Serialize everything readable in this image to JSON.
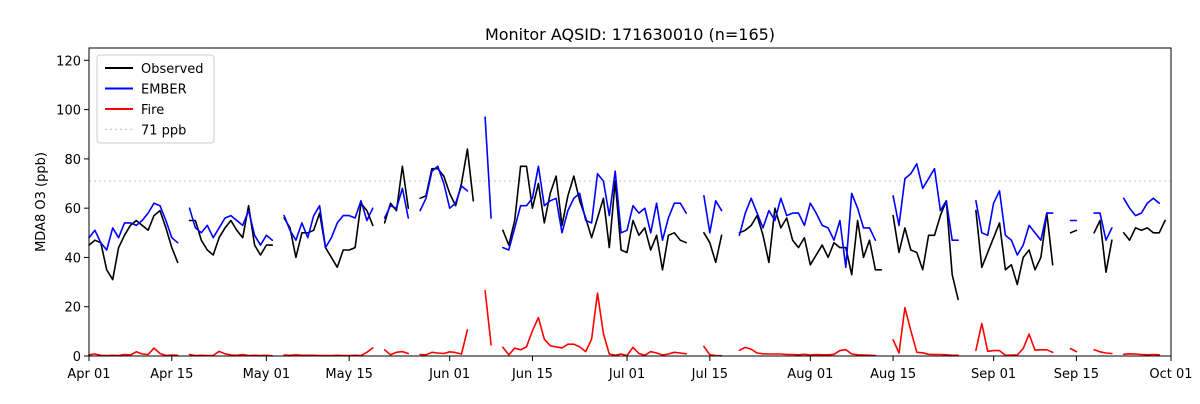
{
  "chart_data": {
    "type": "line",
    "title": "Monitor AQSID: 171630010 (n=165)",
    "xlabel": "",
    "ylabel": "MDA8 O3 (ppb)",
    "ylim": [
      0,
      125
    ],
    "yticks": [
      0,
      20,
      40,
      60,
      80,
      100,
      120
    ],
    "xlim_day": [
      0,
      183
    ],
    "xticks": [
      {
        "day": 0,
        "label": "Apr 01"
      },
      {
        "day": 14,
        "label": "Apr 15"
      },
      {
        "day": 30,
        "label": "May 01"
      },
      {
        "day": 44,
        "label": "May 15"
      },
      {
        "day": 61,
        "label": "Jun 01"
      },
      {
        "day": 75,
        "label": "Jun 15"
      },
      {
        "day": 91,
        "label": "Jul 01"
      },
      {
        "day": 105,
        "label": "Jul 15"
      },
      {
        "day": 122,
        "label": "Aug 01"
      },
      {
        "day": 136,
        "label": "Aug 15"
      },
      {
        "day": 153,
        "label": "Sep 01"
      },
      {
        "day": 167,
        "label": "Sep 15"
      },
      {
        "day": 183,
        "label": "Oct 01"
      }
    ],
    "legend_position": "upper-left",
    "reference_line": {
      "label": "71 ppb",
      "value": 71,
      "color": "#cccccc"
    },
    "series": [
      {
        "name": "Observed",
        "color": "#000000",
        "segments": [
          {
            "start_day": 0,
            "values": [
              45,
              47,
              46,
              35,
              31,
              44,
              49,
              53,
              55,
              53,
              51,
              57,
              59,
              52,
              44,
              38
            ]
          },
          {
            "start_day": 17,
            "values": [
              55,
              55,
              47,
              43,
              41,
              48,
              52,
              55,
              51,
              48,
              61,
              45,
              41,
              45,
              45
            ]
          },
          {
            "start_day": 33,
            "values": [
              56,
              52,
              40,
              50,
              50,
              51,
              58,
              44,
              40,
              36,
              43,
              43,
              44,
              62,
              59,
              53
            ]
          },
          {
            "start_day": 50,
            "values": [
              54,
              62,
              59,
              77,
              60
            ]
          },
          {
            "start_day": 56,
            "values": [
              64,
              65,
              76,
              76,
              73,
              66,
              61,
              70,
              84,
              63
            ]
          },
          {
            "start_day": 70,
            "values": [
              51,
              45,
              55,
              77,
              77,
              60,
              70,
              54,
              66,
              73,
              53,
              65,
              73,
              63,
              56,
              48,
              56,
              64,
              44,
              71,
              43,
              42,
              55,
              49,
              52,
              43,
              49,
              35,
              49,
              50,
              47,
              46
            ]
          },
          {
            "start_day": 104,
            "values": [
              50,
              46,
              38,
              49
            ]
          },
          {
            "start_day": 110,
            "values": [
              50,
              51,
              53,
              57,
              49,
              38,
              60,
              52,
              56,
              47,
              44,
              48,
              37,
              41,
              45,
              40,
              46,
              44,
              44,
              33,
              55,
              40,
              47,
              35,
              35
            ]
          },
          {
            "start_day": 136,
            "values": [
              57,
              42,
              52,
              43,
              42,
              35,
              49,
              49,
              57,
              63,
              33,
              23
            ]
          },
          {
            "start_day": 150,
            "values": [
              59,
              36,
              42,
              48,
              54,
              35,
              37,
              29,
              40,
              43,
              35,
              40,
              58,
              37
            ]
          },
          {
            "start_day": 166,
            "values": [
              50,
              51
            ]
          },
          {
            "start_day": 170,
            "values": [
              50,
              55,
              34,
              47
            ]
          },
          {
            "start_day": 175,
            "values": [
              50,
              47,
              52,
              51,
              52,
              50,
              50,
              55
            ]
          }
        ]
      },
      {
        "name": "EMBER",
        "color": "#0000ff",
        "segments": [
          {
            "start_day": 0,
            "values": [
              48,
              51,
              46,
              43,
              52,
              48,
              54,
              54,
              53,
              55,
              58,
              62,
              61,
              55,
              48,
              46
            ]
          },
          {
            "start_day": 17,
            "values": [
              60,
              52,
              50,
              53,
              48,
              52,
              56,
              57,
              55,
              53,
              59,
              49,
              45,
              49,
              47
            ]
          },
          {
            "start_day": 33,
            "values": [
              57,
              51,
              47,
              54,
              48,
              57,
              61,
              44,
              48,
              54,
              57,
              57,
              56,
              63,
              55,
              60
            ]
          },
          {
            "start_day": 50,
            "values": [
              56,
              61,
              60,
              68,
              56
            ]
          },
          {
            "start_day": 56,
            "values": [
              59,
              64,
              75,
              77,
              70,
              60,
              62,
              69,
              67
            ]
          },
          {
            "start_day": 67,
            "values": [
              97,
              56
            ]
          },
          {
            "start_day": 70,
            "values": [
              44,
              43,
              52,
              61,
              61,
              64,
              77,
              61,
              63,
              64,
              50,
              59,
              64,
              66,
              55,
              54,
              74,
              71,
              57,
              75,
              50,
              51,
              61,
              58,
              60,
              50,
              62,
              47,
              56,
              62,
              62,
              58
            ]
          },
          {
            "start_day": 104,
            "values": [
              65,
              50,
              63,
              59
            ]
          },
          {
            "start_day": 110,
            "values": [
              49,
              58,
              64,
              58,
              52,
              59,
              55,
              64,
              57,
              58,
              58,
              53,
              62,
              58,
              53,
              52,
              47,
              55,
              36,
              66,
              60,
              52,
              52,
              47
            ]
          },
          {
            "start_day": 136,
            "values": [
              65,
              53,
              72,
              74,
              78,
              68,
              72,
              76,
              59,
              63,
              47,
              47
            ]
          },
          {
            "start_day": 150,
            "values": [
              63,
              50,
              49,
              62,
              67,
              49,
              47,
              41,
              45,
              53,
              50,
              47,
              58,
              58
            ]
          },
          {
            "start_day": 166,
            "values": [
              55,
              55
            ]
          },
          {
            "start_day": 170,
            "values": [
              58,
              58,
              47,
              52
            ]
          },
          {
            "start_day": 175,
            "values": [
              64,
              60,
              57,
              58,
              62,
              64,
              62
            ]
          }
        ]
      },
      {
        "name": "Fire",
        "color": "#ff0000",
        "segments": [
          {
            "start_day": 0,
            "values": [
              0.5,
              0.8,
              0.3,
              0.2,
              0.3,
              0.2,
              0.6,
              0.4,
              1.7,
              0.8,
              0.6,
              3.2,
              1,
              0.2,
              0.4,
              0.3
            ]
          },
          {
            "start_day": 17,
            "values": [
              0.6,
              0.2,
              0.3,
              0.2,
              0.2,
              1.9,
              0.9,
              0.4,
              0.3,
              0.6,
              0.2,
              0.3,
              0.2,
              0.3,
              0.1
            ]
          },
          {
            "start_day": 33,
            "values": [
              0.4,
              0.3,
              0.5,
              0.3,
              0.3,
              0.3,
              0.2,
              0.2,
              0.2,
              0.3,
              0.2,
              0.2,
              0.3,
              0.2,
              1.5,
              3.3
            ]
          },
          {
            "start_day": 50,
            "values": [
              2.5,
              0.5,
              1.5,
              1.8,
              1.0
            ]
          },
          {
            "start_day": 56,
            "values": [
              0.6,
              0.5,
              1.5,
              1.2,
              1.0,
              1.7,
              1.4,
              0.8,
              10.6
            ]
          },
          {
            "start_day": 67,
            "values": [
              26.5,
              4.5
            ]
          },
          {
            "start_day": 70,
            "values": [
              3.5,
              0.5,
              3.2,
              2.5,
              3.7,
              10.2,
              15.6,
              6.8,
              4.2,
              3.7,
              3.3,
              4.8,
              4.8,
              3.7,
              1.8,
              6.8,
              25.5,
              9.1,
              0.8,
              0.3,
              0.8,
              0.2,
              3.5,
              1.0,
              0.3,
              1.8,
              1.2,
              0.4,
              0.8,
              1.5,
              1.2,
              0.9
            ]
          },
          {
            "start_day": 104,
            "values": [
              3.9,
              0.5,
              0.2,
              0.1
            ]
          },
          {
            "start_day": 110,
            "values": [
              2.3,
              3.5,
              2.7,
              1.2,
              0.9,
              0.8,
              0.8,
              0.8,
              0.6,
              0.6,
              0.5,
              0.7,
              0.4,
              0.6,
              0.5,
              0.5,
              0.7,
              2.2,
              2.6,
              0.8,
              0.5,
              0.4,
              0.3,
              0.2
            ]
          },
          {
            "start_day": 136,
            "values": [
              6.6,
              1.2,
              19.6,
              10.3,
              1.5,
              1.3,
              0.7,
              0.6,
              0.6,
              0.5,
              0.3,
              0.3
            ]
          },
          {
            "start_day": 150,
            "values": [
              2.3,
              13.2,
              1.9,
              2.2,
              2.2,
              0.3,
              0.4,
              0.4,
              3.0,
              8.9,
              2.4,
              2.5,
              2.5,
              1.5
            ]
          },
          {
            "start_day": 166,
            "values": [
              3.0,
              1.8
            ]
          },
          {
            "start_day": 170,
            "values": [
              2.5,
              1.7,
              1.2,
              1.0
            ]
          },
          {
            "start_day": 175,
            "values": [
              0.7,
              0.9,
              0.8,
              0.6,
              0.5,
              0.6,
              0.5
            ]
          }
        ]
      }
    ]
  }
}
